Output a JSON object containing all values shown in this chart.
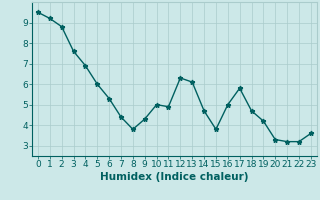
{
  "x": [
    0,
    1,
    2,
    3,
    4,
    5,
    6,
    7,
    8,
    9,
    10,
    11,
    12,
    13,
    14,
    15,
    16,
    17,
    18,
    19,
    20,
    21,
    22,
    23
  ],
  "y": [
    9.5,
    9.2,
    8.8,
    7.6,
    6.9,
    6.0,
    5.3,
    4.4,
    3.8,
    4.3,
    5.0,
    4.9,
    6.3,
    6.1,
    4.7,
    3.8,
    5.0,
    5.8,
    4.7,
    4.2,
    3.3,
    3.2,
    3.2,
    3.6
  ],
  "xlabel": "Humidex (Indice chaleur)",
  "xlim": [
    -0.5,
    23.5
  ],
  "ylim": [
    2.5,
    10.0
  ],
  "yticks": [
    3,
    4,
    5,
    6,
    7,
    8,
    9
  ],
  "xtick_labels": [
    "0",
    "1",
    "2",
    "3",
    "4",
    "5",
    "6",
    "7",
    "8",
    "9",
    "10",
    "11",
    "12",
    "13",
    "14",
    "15",
    "16",
    "17",
    "18",
    "19",
    "20",
    "21",
    "22",
    "23"
  ],
  "line_color": "#006060",
  "marker": "*",
  "bg_color": "#cce8e8",
  "grid_color": "#aacccc",
  "font_color": "#006060",
  "xlabel_fontsize": 7.5,
  "tick_fontsize": 6.5
}
